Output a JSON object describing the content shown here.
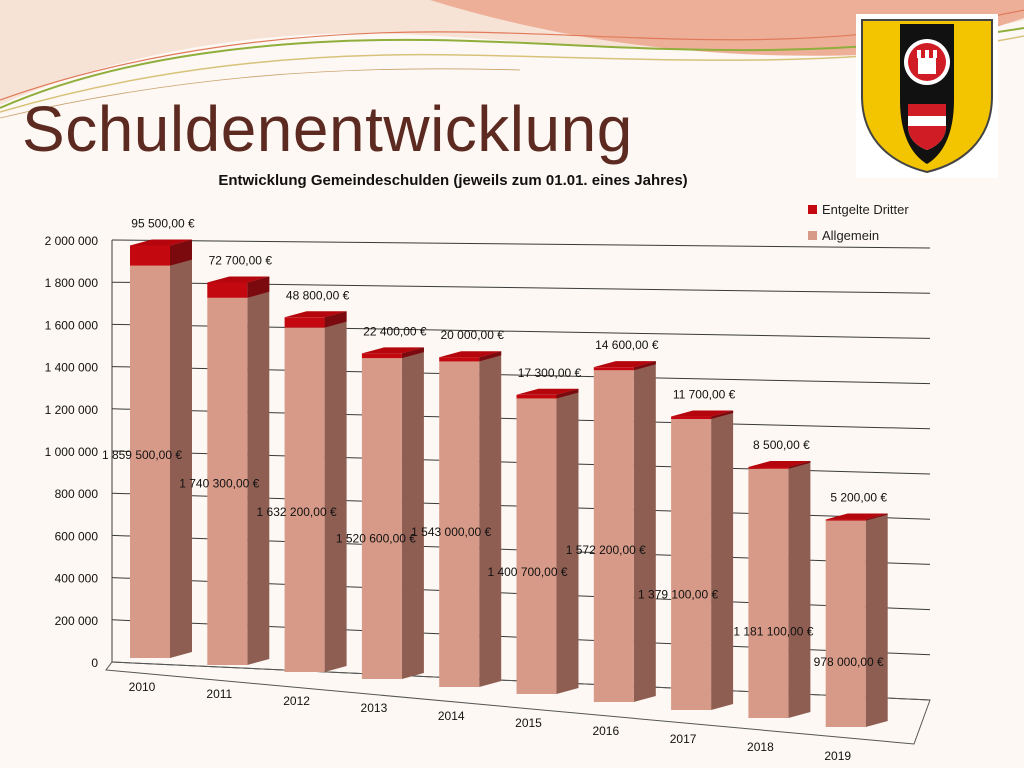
{
  "slide": {
    "title": "Schuldenentwicklung"
  },
  "chart_data": {
    "type": "bar",
    "stacked": true,
    "title": "Entwicklung Gemeindeschulden (jeweils zum 01.01. eines Jahres)",
    "categories": [
      "2010",
      "2011",
      "2012",
      "2013",
      "2014",
      "2015",
      "2016",
      "2017",
      "2018",
      "2019"
    ],
    "series": [
      {
        "name": "Allgemein",
        "values": [
          1859500,
          1740300,
          1632200,
          1520600,
          1543000,
          1400700,
          1572200,
          1379100,
          1181100,
          978000
        ],
        "labels": [
          "1 859 500,00 €",
          "1 740 300,00 €",
          "1 632 200,00 €",
          "1 520 600,00 €",
          "1 543 000,00 €",
          "1 400 700,00 €",
          "1 572 200,00 €",
          "1 379 100,00 €",
          "1 181 100,00 €",
          "978 000,00 €"
        ],
        "color": "#d89a88"
      },
      {
        "name": "Entgelte Dritter",
        "values": [
          95500,
          72700,
          48800,
          22400,
          20000,
          17300,
          14600,
          11700,
          8500,
          5200
        ],
        "labels": [
          "95 500,00 €",
          "72 700,00 €",
          "48 800,00 €",
          "22 400,00 €",
          "20 000,00 €",
          "17 300,00 €",
          "14 600,00 €",
          "11 700,00 €",
          "8 500,00 €",
          "5 200,00 €"
        ],
        "color": "#c4080f"
      }
    ],
    "y_ticks": [
      0,
      200000,
      400000,
      600000,
      800000,
      1000000,
      1200000,
      1400000,
      1600000,
      1800000,
      2000000
    ],
    "y_tick_labels": [
      "0",
      "200 000",
      "400 000",
      "600 000",
      "800 000",
      "1 000 000",
      "1 200 000",
      "1 400 000",
      "1 600 000",
      "1 800 000",
      "2 000 000"
    ],
    "ylim": [
      0,
      2000000
    ],
    "grid": true,
    "legend_position": "top-right"
  }
}
